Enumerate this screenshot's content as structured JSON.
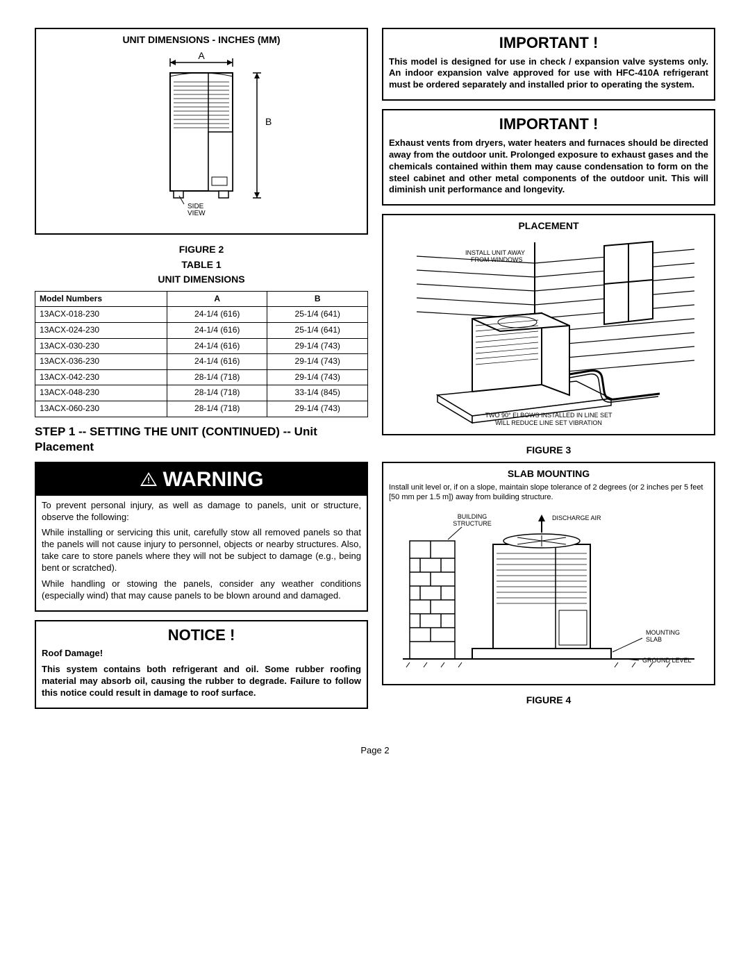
{
  "left": {
    "fig2_title": "UNIT DIMENSIONS - INCHES (MM)",
    "fig2_label_A": "A",
    "fig2_label_B": "B",
    "fig2_sideview": "SIDE\nVIEW",
    "fig2_caption": "FIGURE 2",
    "table1_caption1": "TABLE 1",
    "table1_caption2": "UNIT DIMENSIONS",
    "table1_headers": [
      "Model Numbers",
      "A",
      "B"
    ],
    "table1_rows": [
      [
        "13ACX-018-230",
        "24-1/4 (616)",
        "25-1/4 (641)"
      ],
      [
        "13ACX-024-230",
        "24-1/4 (616)",
        "25-1/4 (641)"
      ],
      [
        "13ACX-030-230",
        "24-1/4 (616)",
        "29-1/4 (743)"
      ],
      [
        "13ACX-036-230",
        "24-1/4 (616)",
        "29-1/4 (743)"
      ],
      [
        "13ACX-042-230",
        "28-1/4 (718)",
        "29-1/4 (743)"
      ],
      [
        "13ACX-048-230",
        "28-1/4 (718)",
        "33-1/4 (845)"
      ],
      [
        "13ACX-060-230",
        "28-1/4 (718)",
        "29-1/4 (743)"
      ]
    ],
    "step_heading": "STEP 1 -- SETTING THE UNIT (CONTINUED) -- Unit Placement",
    "warning_label": "WARNING",
    "warning_p1": "To prevent personal injury, as well as damage to panels, unit or structure, observe the following:",
    "warning_p2": "While installing or servicing this unit, carefully stow all removed panels so that the panels will not cause injury to personnel, objects or nearby structures. Also, take care to store panels where they will not be subject to damage (e.g., being bent or scratched).",
    "warning_p3": "While handling or stowing the panels, consider any weather conditions (especially wind) that may cause panels to be blown around and damaged.",
    "notice_label": "NOTICE !",
    "notice_sub": "Roof Damage!",
    "notice_body": "This system contains both refrigerant and oil. Some rubber roofing material may absorb oil, causing the rubber to degrade. Failure to follow this notice could result in damage to roof surface."
  },
  "right": {
    "imp1_label": "IMPORTANT !",
    "imp1_body": "This model is designed for use in check / expansion valve systems only. An indoor expansion valve approved for use with HFC-410A refrigerant must be ordered separately and installed prior to operating the system.",
    "imp2_label": "IMPORTANT !",
    "imp2_body": "Exhaust vents from dryers, water heaters and furnaces should be directed away from the outdoor unit. Prolonged exposure to exhaust gases and the chemicals contained within them may cause condensation to form on the steel cabinet and other metal components of the outdoor unit. This will diminish unit performance and longevity.",
    "fig3_title": "PLACEMENT",
    "fig3_note1": "INSTALL UNIT AWAY\nFROM WINDOWS",
    "fig3_note2": "TWO 90° ELBOWS INSTALLED IN LINE SET\nWILL REDUCE LINE SET VIBRATION",
    "fig3_caption": "FIGURE 3",
    "fig4_title": "SLAB MOUNTING",
    "fig4_intro": "Install unit level or, if on a slope, maintain slope tolerance of 2 degrees (or 2 inches per 5 feet [50 mm per 1.5 m]) away from building structure.",
    "fig4_building": "BUILDING\nSTRUCTURE",
    "fig4_discharge": "DISCHARGE AIR",
    "fig4_slab": "MOUNTING\nSLAB",
    "fig4_ground": "GROUND LEVEL",
    "fig4_caption": "FIGURE 4"
  },
  "page_num": "Page 2"
}
